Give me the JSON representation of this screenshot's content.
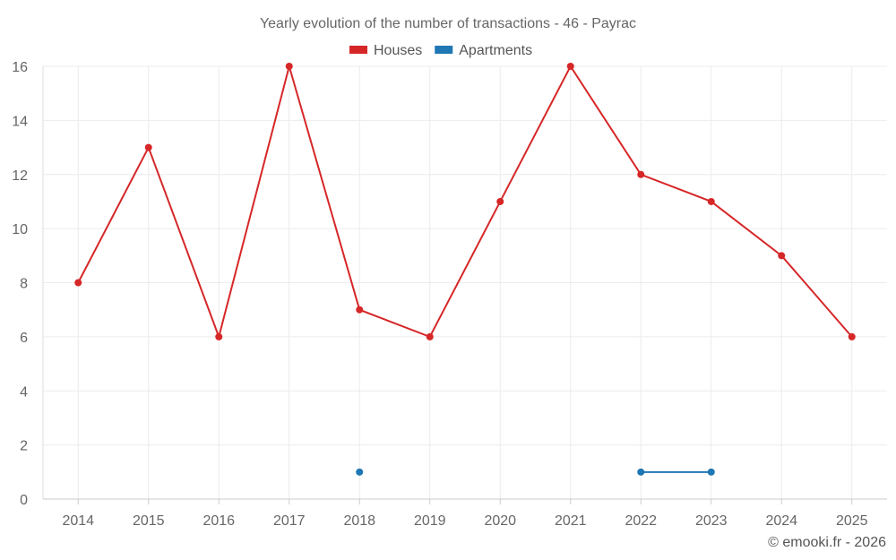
{
  "chart_data": {
    "type": "line",
    "title": "Yearly evolution of the number of transactions - 46 - Payrac",
    "categories": [
      "2014",
      "2015",
      "2016",
      "2017",
      "2018",
      "2019",
      "2020",
      "2021",
      "2022",
      "2023",
      "2024",
      "2025"
    ],
    "series": [
      {
        "name": "Houses",
        "color": "#d62728",
        "values": [
          8,
          13,
          6,
          16,
          7,
          6,
          11,
          16,
          12,
          11,
          9,
          6
        ]
      },
      {
        "name": "Apartments",
        "color": "#1f77b4",
        "values": [
          null,
          null,
          null,
          null,
          1,
          null,
          null,
          null,
          1,
          1,
          null,
          null
        ]
      }
    ],
    "ylim": [
      0,
      16
    ],
    "yticks": [
      0,
      2,
      4,
      6,
      8,
      10,
      12,
      14,
      16
    ],
    "grid": true,
    "legend": "top-center"
  },
  "credit": "© emooki.fr - 2026"
}
